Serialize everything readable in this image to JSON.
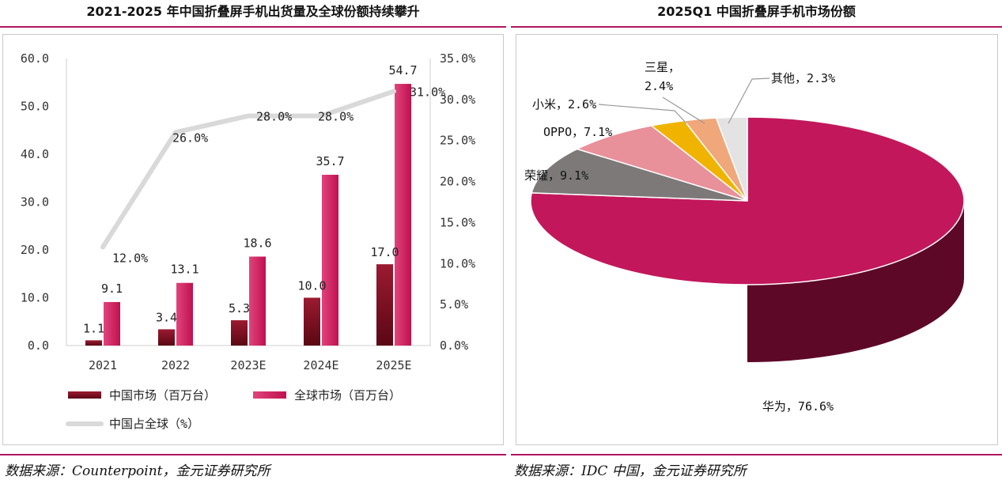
{
  "left_panel": {
    "title": "2021-2025 年中国折叠屏手机出货量及全球份额持续攀升",
    "source": "数据来源：Counterpoint，金元证券研究所"
  },
  "right_panel": {
    "title": "2025Q1 中国折叠屏手机市场份额",
    "source": "数据来源：IDC 中国，金元证券研究所"
  },
  "colors": {
    "accent": "#b01560",
    "china_bar": "#7a0c1e",
    "global_bar": "#d41a5c",
    "share_line": "#d9d9d9"
  },
  "chart_data": [
    {
      "type": "bar",
      "title": "2021-2025 年中国折叠屏手机出货量及全球份额持续攀升",
      "categories": [
        "2021",
        "2022",
        "2023E",
        "2024E",
        "2025E"
      ],
      "series": [
        {
          "name": "中国市场（百万台）",
          "type": "bar",
          "axis": "left",
          "values": [
            1.1,
            3.4,
            5.3,
            10.0,
            17.0
          ],
          "labels": [
            "1.1",
            "3.4",
            "5.3",
            "10.0",
            "17.0"
          ]
        },
        {
          "name": "全球市场（百万台）",
          "type": "bar",
          "axis": "left",
          "values": [
            9.1,
            13.1,
            18.6,
            35.7,
            54.7
          ],
          "labels": [
            "9.1",
            "13.1",
            "18.6",
            "35.7",
            "54.7"
          ]
        },
        {
          "name": "中国占全球（%）",
          "type": "line",
          "axis": "right",
          "values": [
            12.0,
            26.0,
            28.0,
            28.0,
            31.0
          ],
          "labels": [
            "12.0%",
            "26.0%",
            "28.0%",
            "28.0%",
            "31.0%"
          ]
        }
      ],
      "ylim": [
        0,
        60
      ],
      "yticks": [
        "0.0",
        "10.0",
        "20.0",
        "30.0",
        "40.0",
        "50.0",
        "60.0"
      ],
      "y2lim": [
        0,
        35
      ],
      "y2ticks": [
        "0.0%",
        "5.0%",
        "10.0%",
        "15.0%",
        "20.0%",
        "25.0%",
        "30.0%",
        "35.0%"
      ],
      "legend": "bottom",
      "grid": false
    },
    {
      "type": "pie",
      "title": "2025Q1 中国折叠屏手机市场份额",
      "slices": [
        {
          "name": "华为",
          "value": 76.6,
          "label": "华为，76.6%",
          "color": "#c2185b"
        },
        {
          "name": "荣耀",
          "value": 9.1,
          "label": "荣耀，9.1%",
          "color": "#7d7979"
        },
        {
          "name": "OPPO",
          "value": 7.1,
          "label": "OPPO，7.1%",
          "color": "#e8919b"
        },
        {
          "name": "小米",
          "value": 2.6,
          "label": "小米，2.6%",
          "color": "#f0b400"
        },
        {
          "name": "三星",
          "value": 2.4,
          "label": "三星，\n2.4%",
          "color": "#f0a77a"
        },
        {
          "name": "其他",
          "value": 2.3,
          "label": "其他，2.3%",
          "color": "#e3e3e3"
        }
      ]
    }
  ]
}
